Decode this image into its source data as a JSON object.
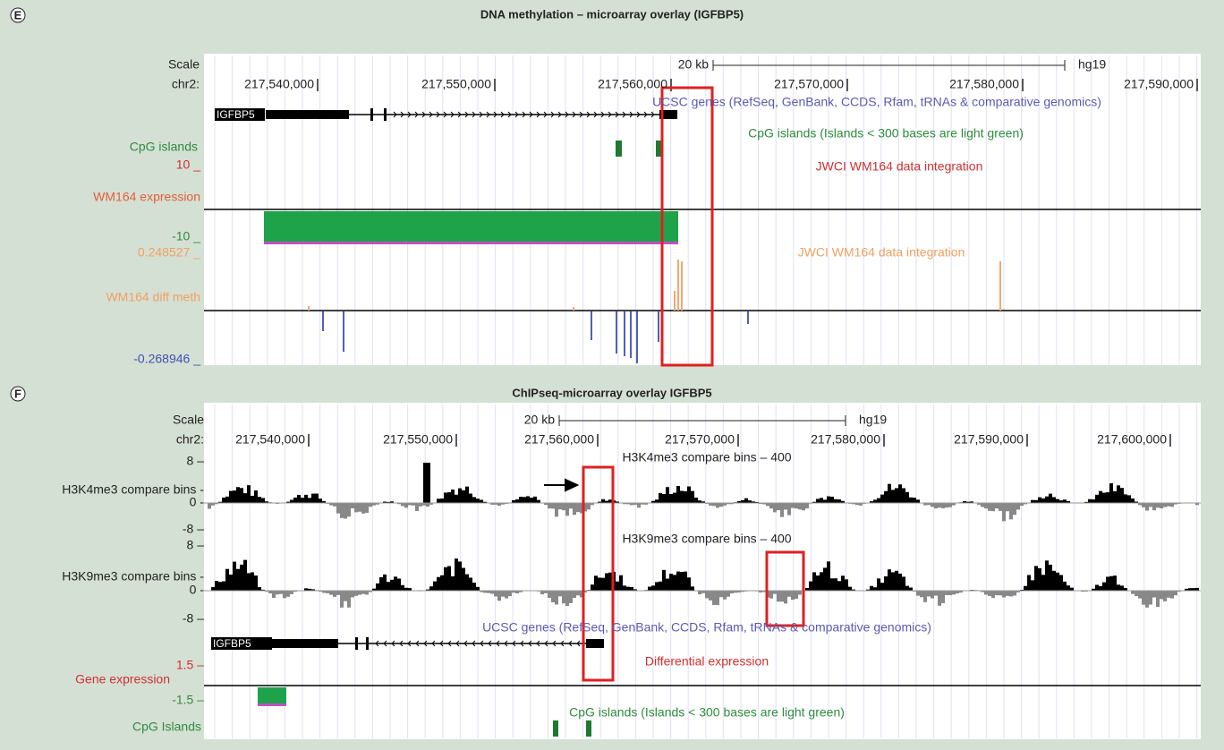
{
  "panels": [
    {
      "label": "E",
      "title": "DNA methylation – microarray overlay (IGFBP5)",
      "scale": "Scale",
      "chrom": "chr2:",
      "scale_bar": "20 kb",
      "assembly": "hg19",
      "positions": [
        "217,540,000",
        "217,550,000",
        "217,560,000",
        "217,570,000",
        "217,580,000",
        "217,590,000"
      ],
      "gene": "IGFBP5",
      "tracks": [
        "UCSC genes (RefSeq, GenBank, CCDS, Rfam, tRNAs & comparative genomics)",
        "CpG islands",
        "CpG islands (Islands < 300 bases are light green)",
        "10 _",
        "JWCI WM164 data integration",
        "WM164 expression",
        "-10 _",
        "0.248527 _",
        "JWCI WM164 data integration",
        "WM164 diff meth",
        "-0.268946 _"
      ]
    },
    {
      "label": "F",
      "title": "ChIPseq-microarray overlay IGFBP5",
      "scale": "Scale",
      "chrom": "chr2:",
      "scale_bar": "20 kb",
      "assembly": "hg19",
      "positions": [
        "217,540,000",
        "217,550,000",
        "217,560,000",
        "217,570,000",
        "217,580,000",
        "217,590,000",
        "217,600,000"
      ],
      "gene": "IGFBP5",
      "tracks": [
        "8 –",
        "H3K4me3 compare bins – 400",
        "H3K4me3 compare bins -",
        "0 -",
        "-8 –",
        "8 –",
        "H3K9me3 compare bins – 400",
        "H3K9me3 compare bins -",
        "0 -",
        "-8 –",
        "UCSC genes (RefSeq, GenBank, CCDS, Rfam, tRNAs & comparative genomics)",
        "1.5 –",
        "Differential expression",
        "Gene expression",
        "-1.5 –",
        "CpG islands (Islands < 300 bases are light green)",
        "CpG Islands"
      ]
    }
  ]
}
